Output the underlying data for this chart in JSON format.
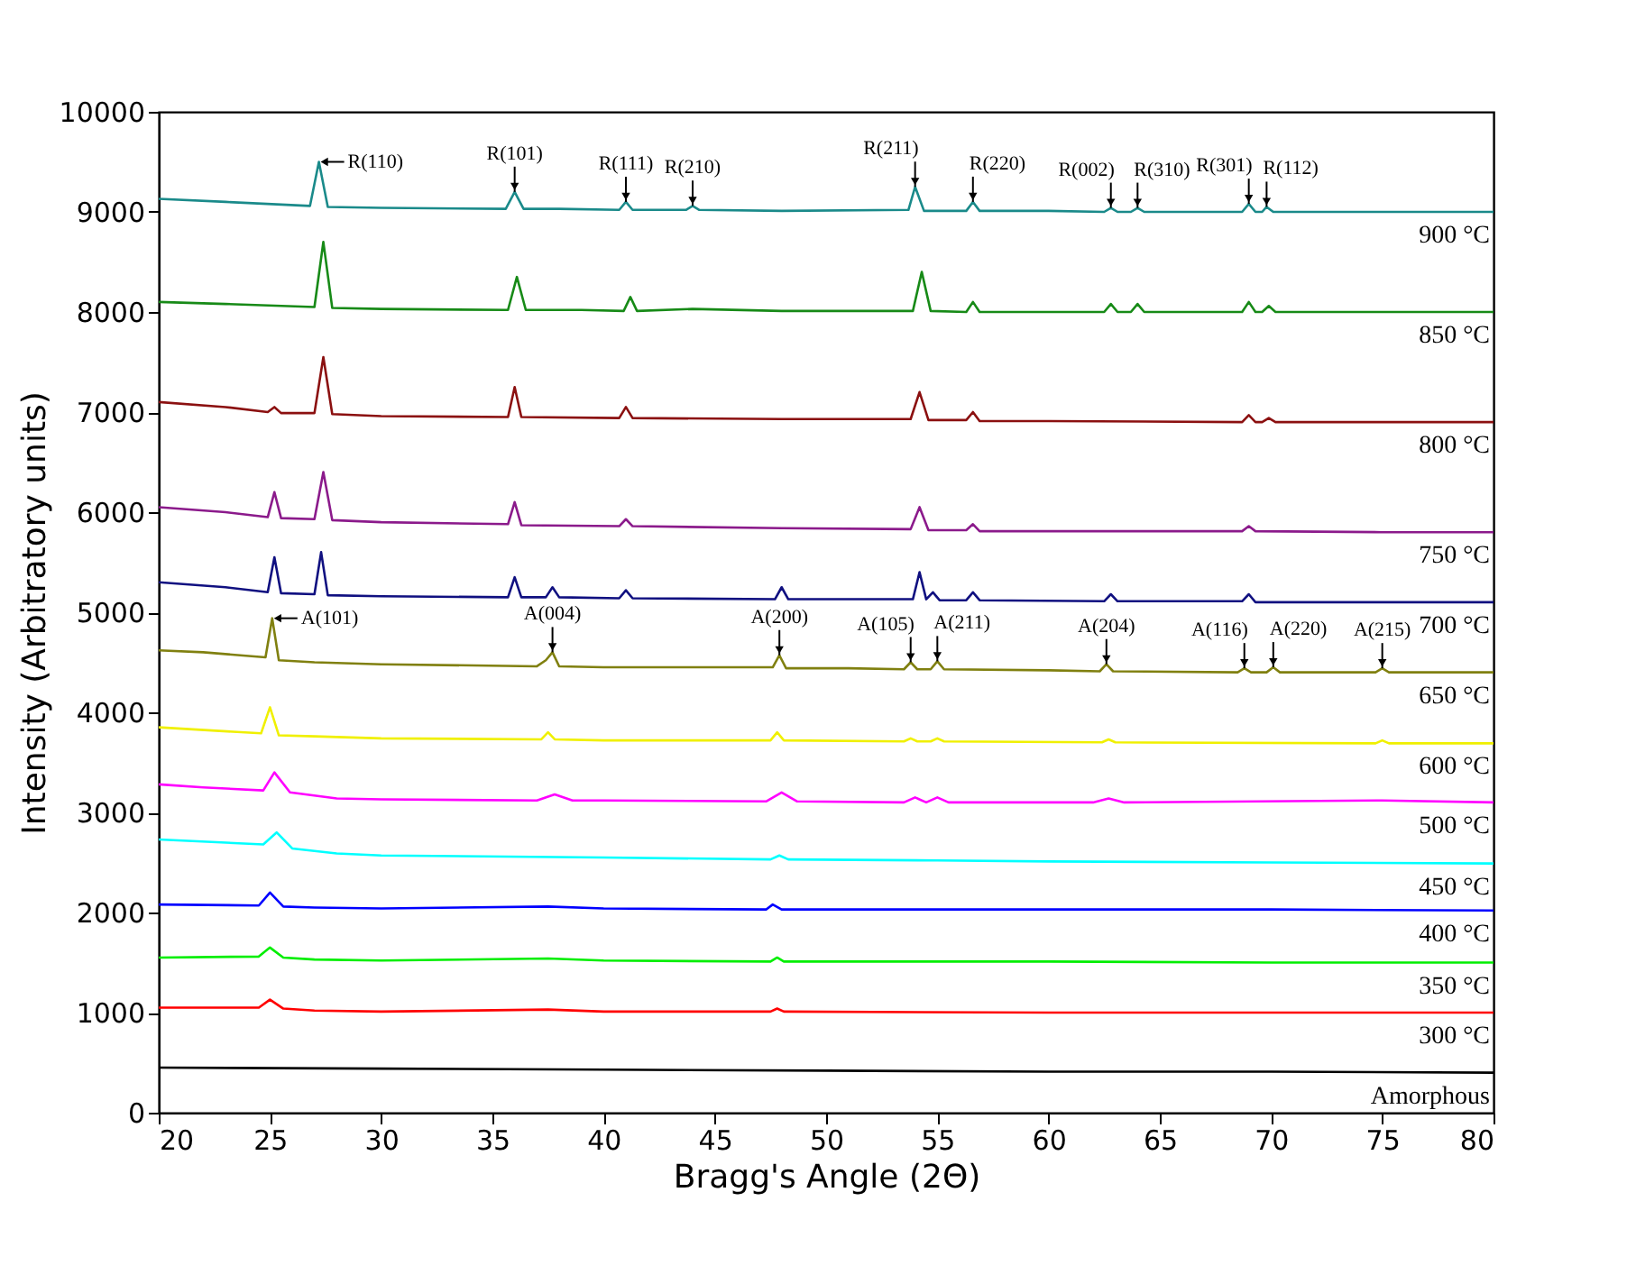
{
  "chart_data": {
    "type": "line",
    "xlabel": "Bragg's Angle (2Θ)",
    "ylabel": "Intensity (Arbitratory units)",
    "xlim": [
      20,
      80
    ],
    "ylim": [
      0,
      10000
    ],
    "xticks": [
      20,
      25,
      30,
      35,
      40,
      45,
      50,
      55,
      60,
      65,
      70,
      75,
      80
    ],
    "yticks": [
      0,
      1000,
      2000,
      3000,
      4000,
      5000,
      6000,
      7000,
      8000,
      9000,
      10000
    ],
    "series": [
      {
        "name": "900 °C",
        "color": "#1a8a8a",
        "x": [
          20,
          23,
          26.8,
          27.2,
          27.6,
          30,
          35.6,
          36,
          36.4,
          38,
          40.7,
          41,
          41.3,
          43.7,
          44,
          44.3,
          48,
          53.7,
          54,
          54.4,
          56.3,
          56.6,
          56.9,
          60,
          62.5,
          62.8,
          63.1,
          63.7,
          64,
          64.3,
          66,
          68.7,
          69,
          69.3,
          69.6,
          69.8,
          70.1,
          75,
          80
        ],
        "values": [
          9130,
          9100,
          9060,
          9500,
          9050,
          9040,
          9030,
          9200,
          9030,
          9030,
          9020,
          9100,
          9020,
          9020,
          9060,
          9020,
          9010,
          9020,
          9250,
          9010,
          9010,
          9100,
          9010,
          9010,
          9000,
          9040,
          9000,
          9000,
          9040,
          9000,
          9000,
          9000,
          9080,
          9000,
          9000,
          9050,
          9000,
          9000,
          9000
        ]
      },
      {
        "name": "850 °C",
        "color": "#178a17",
        "x": [
          20,
          23,
          27,
          27.4,
          27.8,
          30,
          35.7,
          36.1,
          36.5,
          39,
          40.9,
          41.2,
          41.5,
          44,
          48,
          53.9,
          54.3,
          54.7,
          56.3,
          56.6,
          56.9,
          60,
          62.5,
          62.8,
          63.1,
          63.7,
          64,
          64.3,
          68.7,
          69,
          69.3,
          69.6,
          69.9,
          70.2,
          75,
          80
        ],
        "values": [
          8100,
          8080,
          8050,
          8700,
          8040,
          8030,
          8020,
          8350,
          8020,
          8020,
          8010,
          8150,
          8010,
          8030,
          8010,
          8010,
          8400,
          8010,
          8000,
          8100,
          8000,
          8000,
          8000,
          8080,
          8000,
          8000,
          8080,
          8000,
          8000,
          8100,
          8000,
          8000,
          8060,
          8000,
          8000,
          8000
        ]
      },
      {
        "name": "800 °C",
        "color": "#8b1010",
        "x": [
          20,
          23,
          24.9,
          25.2,
          25.5,
          27,
          27.4,
          27.8,
          30,
          35.7,
          36,
          36.3,
          40.7,
          41,
          41.3,
          48,
          53.8,
          54.2,
          54.6,
          56.3,
          56.6,
          56.9,
          60,
          68.7,
          69,
          69.3,
          69.6,
          69.9,
          70.2,
          75,
          80
        ],
        "values": [
          7100,
          7050,
          7000,
          7050,
          6990,
          6990,
          7550,
          6980,
          6960,
          6950,
          7250,
          6950,
          6940,
          7050,
          6940,
          6930,
          6930,
          7200,
          6920,
          6920,
          7000,
          6910,
          6910,
          6900,
          6970,
          6900,
          6900,
          6940,
          6900,
          6900,
          6900
        ]
      },
      {
        "name": "750 °C",
        "color": "#8b1a8b",
        "x": [
          20,
          23,
          24.9,
          25.2,
          25.5,
          27,
          27.4,
          27.8,
          30,
          35.7,
          36,
          36.3,
          40.7,
          41,
          41.3,
          48,
          53.8,
          54.2,
          54.6,
          56.3,
          56.6,
          56.9,
          68.7,
          69,
          69.3,
          75,
          80
        ],
        "values": [
          6050,
          6000,
          5950,
          6200,
          5940,
          5930,
          6400,
          5920,
          5900,
          5880,
          6100,
          5870,
          5860,
          5930,
          5860,
          5840,
          5830,
          6050,
          5820,
          5820,
          5880,
          5810,
          5810,
          5860,
          5810,
          5800,
          5800
        ]
      },
      {
        "name": "700 °C",
        "color": "#101080",
        "x": [
          20,
          23,
          24.9,
          25.2,
          25.5,
          27,
          27.3,
          27.6,
          30,
          35.7,
          36,
          36.3,
          37.4,
          37.7,
          38,
          40.7,
          41,
          41.3,
          47.7,
          48,
          48.3,
          53.9,
          54.2,
          54.5,
          54.8,
          55.1,
          56.3,
          56.6,
          56.9,
          62.5,
          62.8,
          63.1,
          68.7,
          69,
          69.3,
          75,
          80
        ],
        "values": [
          5300,
          5250,
          5200,
          5550,
          5190,
          5180,
          5600,
          5170,
          5160,
          5150,
          5350,
          5150,
          5150,
          5250,
          5150,
          5140,
          5220,
          5140,
          5130,
          5250,
          5130,
          5130,
          5400,
          5130,
          5200,
          5120,
          5120,
          5200,
          5120,
          5110,
          5180,
          5110,
          5110,
          5180,
          5100,
          5100,
          5100
        ]
      },
      {
        "name": "650 °C",
        "color": "#808010",
        "x": [
          20,
          22,
          24.8,
          25.1,
          25.4,
          27,
          30,
          37,
          37.4,
          37.7,
          38,
          40,
          47.6,
          47.9,
          48.2,
          51,
          53.5,
          53.8,
          54.1,
          54.7,
          55,
          55.3,
          60,
          62.3,
          62.6,
          62.9,
          68.5,
          68.8,
          69.1,
          69.8,
          70.1,
          70.4,
          74.7,
          75,
          75.3,
          80
        ],
        "values": [
          4620,
          4600,
          4550,
          4940,
          4520,
          4500,
          4480,
          4460,
          4520,
          4600,
          4460,
          4450,
          4450,
          4570,
          4440,
          4440,
          4430,
          4500,
          4430,
          4430,
          4510,
          4430,
          4420,
          4410,
          4480,
          4410,
          4400,
          4440,
          4400,
          4400,
          4450,
          4400,
          4400,
          4440,
          4400,
          4400
        ]
      },
      {
        "name": "600 °C",
        "color": "#f0f000",
        "x": [
          20,
          24.6,
          25,
          25.4,
          27,
          30,
          37.2,
          37.5,
          37.8,
          40,
          47.5,
          47.8,
          48.1,
          53.5,
          53.8,
          54.1,
          54.7,
          55,
          55.3,
          62.4,
          62.7,
          63,
          74.7,
          75,
          75.3,
          80
        ],
        "values": [
          3850,
          3790,
          4050,
          3770,
          3760,
          3740,
          3730,
          3800,
          3730,
          3720,
          3720,
          3800,
          3720,
          3710,
          3740,
          3710,
          3710,
          3740,
          3710,
          3700,
          3730,
          3700,
          3690,
          3720,
          3690,
          3690
        ]
      },
      {
        "name": "500 °C",
        "color": "#ff00ff",
        "x": [
          20,
          22,
          24.7,
          25.2,
          25.9,
          28,
          30,
          37,
          37.8,
          38.6,
          40,
          47.3,
          48,
          48.7,
          53.5,
          54,
          54.5,
          55,
          55.5,
          62,
          62.7,
          63.4,
          75,
          80
        ],
        "values": [
          3280,
          3250,
          3220,
          3400,
          3200,
          3140,
          3130,
          3120,
          3180,
          3120,
          3120,
          3110,
          3200,
          3110,
          3100,
          3150,
          3100,
          3150,
          3100,
          3100,
          3140,
          3100,
          3120,
          3100
        ]
      },
      {
        "name": "450 °C",
        "color": "#00ffff",
        "x": [
          20,
          24.7,
          25.3,
          26,
          28,
          30,
          40,
          47.5,
          47.9,
          48.3,
          55,
          60,
          70,
          80
        ],
        "values": [
          2730,
          2680,
          2800,
          2640,
          2590,
          2570,
          2550,
          2530,
          2570,
          2530,
          2520,
          2510,
          2500,
          2490
        ]
      },
      {
        "name": "400 °C",
        "color": "#0000ff",
        "x": [
          20,
          24.5,
          25,
          25.6,
          27,
          30,
          37.5,
          40,
          47.3,
          47.6,
          48,
          60,
          70,
          80
        ],
        "values": [
          2080,
          2070,
          2200,
          2060,
          2050,
          2040,
          2060,
          2040,
          2030,
          2080,
          2030,
          2030,
          2030,
          2020
        ]
      },
      {
        "name": "350 °C",
        "color": "#00ee00",
        "x": [
          20,
          24.5,
          25,
          25.6,
          27,
          30,
          37.5,
          40,
          47.5,
          47.8,
          48.1,
          60,
          70,
          80
        ],
        "values": [
          1550,
          1560,
          1650,
          1550,
          1530,
          1520,
          1540,
          1520,
          1510,
          1550,
          1510,
          1510,
          1500,
          1500
        ]
      },
      {
        "name": "300 °C",
        "color": "#ff0000",
        "x": [
          20,
          24.5,
          25,
          25.6,
          27,
          30,
          37.5,
          40,
          47.5,
          47.8,
          48.1,
          60,
          70,
          80
        ],
        "values": [
          1050,
          1050,
          1130,
          1040,
          1020,
          1010,
          1030,
          1010,
          1010,
          1040,
          1010,
          1000,
          1000,
          1000
        ]
      },
      {
        "name": "Amorphous",
        "color": "#000000",
        "x": [
          20,
          30,
          40,
          50,
          60,
          70,
          80
        ],
        "values": [
          450,
          440,
          430,
          420,
          410,
          410,
          400
        ]
      }
    ],
    "annotations": [
      {
        "text": "R(110)",
        "x": 27.2,
        "y": 9500
      },
      {
        "text": "R(101)",
        "x": 36,
        "y": 9200
      },
      {
        "text": "R(111)",
        "x": 41,
        "y": 9100
      },
      {
        "text": "R(210)",
        "x": 44,
        "y": 9060
      },
      {
        "text": "R(211)",
        "x": 54,
        "y": 9250
      },
      {
        "text": "R(220)",
        "x": 56.6,
        "y": 9100
      },
      {
        "text": "R(002)",
        "x": 62.8,
        "y": 9040
      },
      {
        "text": "R(310)",
        "x": 64,
        "y": 9040
      },
      {
        "text": "R(301)",
        "x": 69,
        "y": 9080
      },
      {
        "text": "R(112)",
        "x": 69.8,
        "y": 9050
      },
      {
        "text": "A(101)",
        "x": 25.1,
        "y": 4940
      },
      {
        "text": "A(004)",
        "x": 37.7,
        "y": 4600
      },
      {
        "text": "A(200)",
        "x": 47.9,
        "y": 4570
      },
      {
        "text": "A(105)",
        "x": 53.8,
        "y": 4500
      },
      {
        "text": "A(211)",
        "x": 55,
        "y": 4510
      },
      {
        "text": "A(204)",
        "x": 62.6,
        "y": 4480
      },
      {
        "text": "A(116)",
        "x": 68.8,
        "y": 4440
      },
      {
        "text": "A(220)",
        "x": 70.1,
        "y": 4450
      },
      {
        "text": "A(215)",
        "x": 75,
        "y": 4440
      }
    ]
  }
}
